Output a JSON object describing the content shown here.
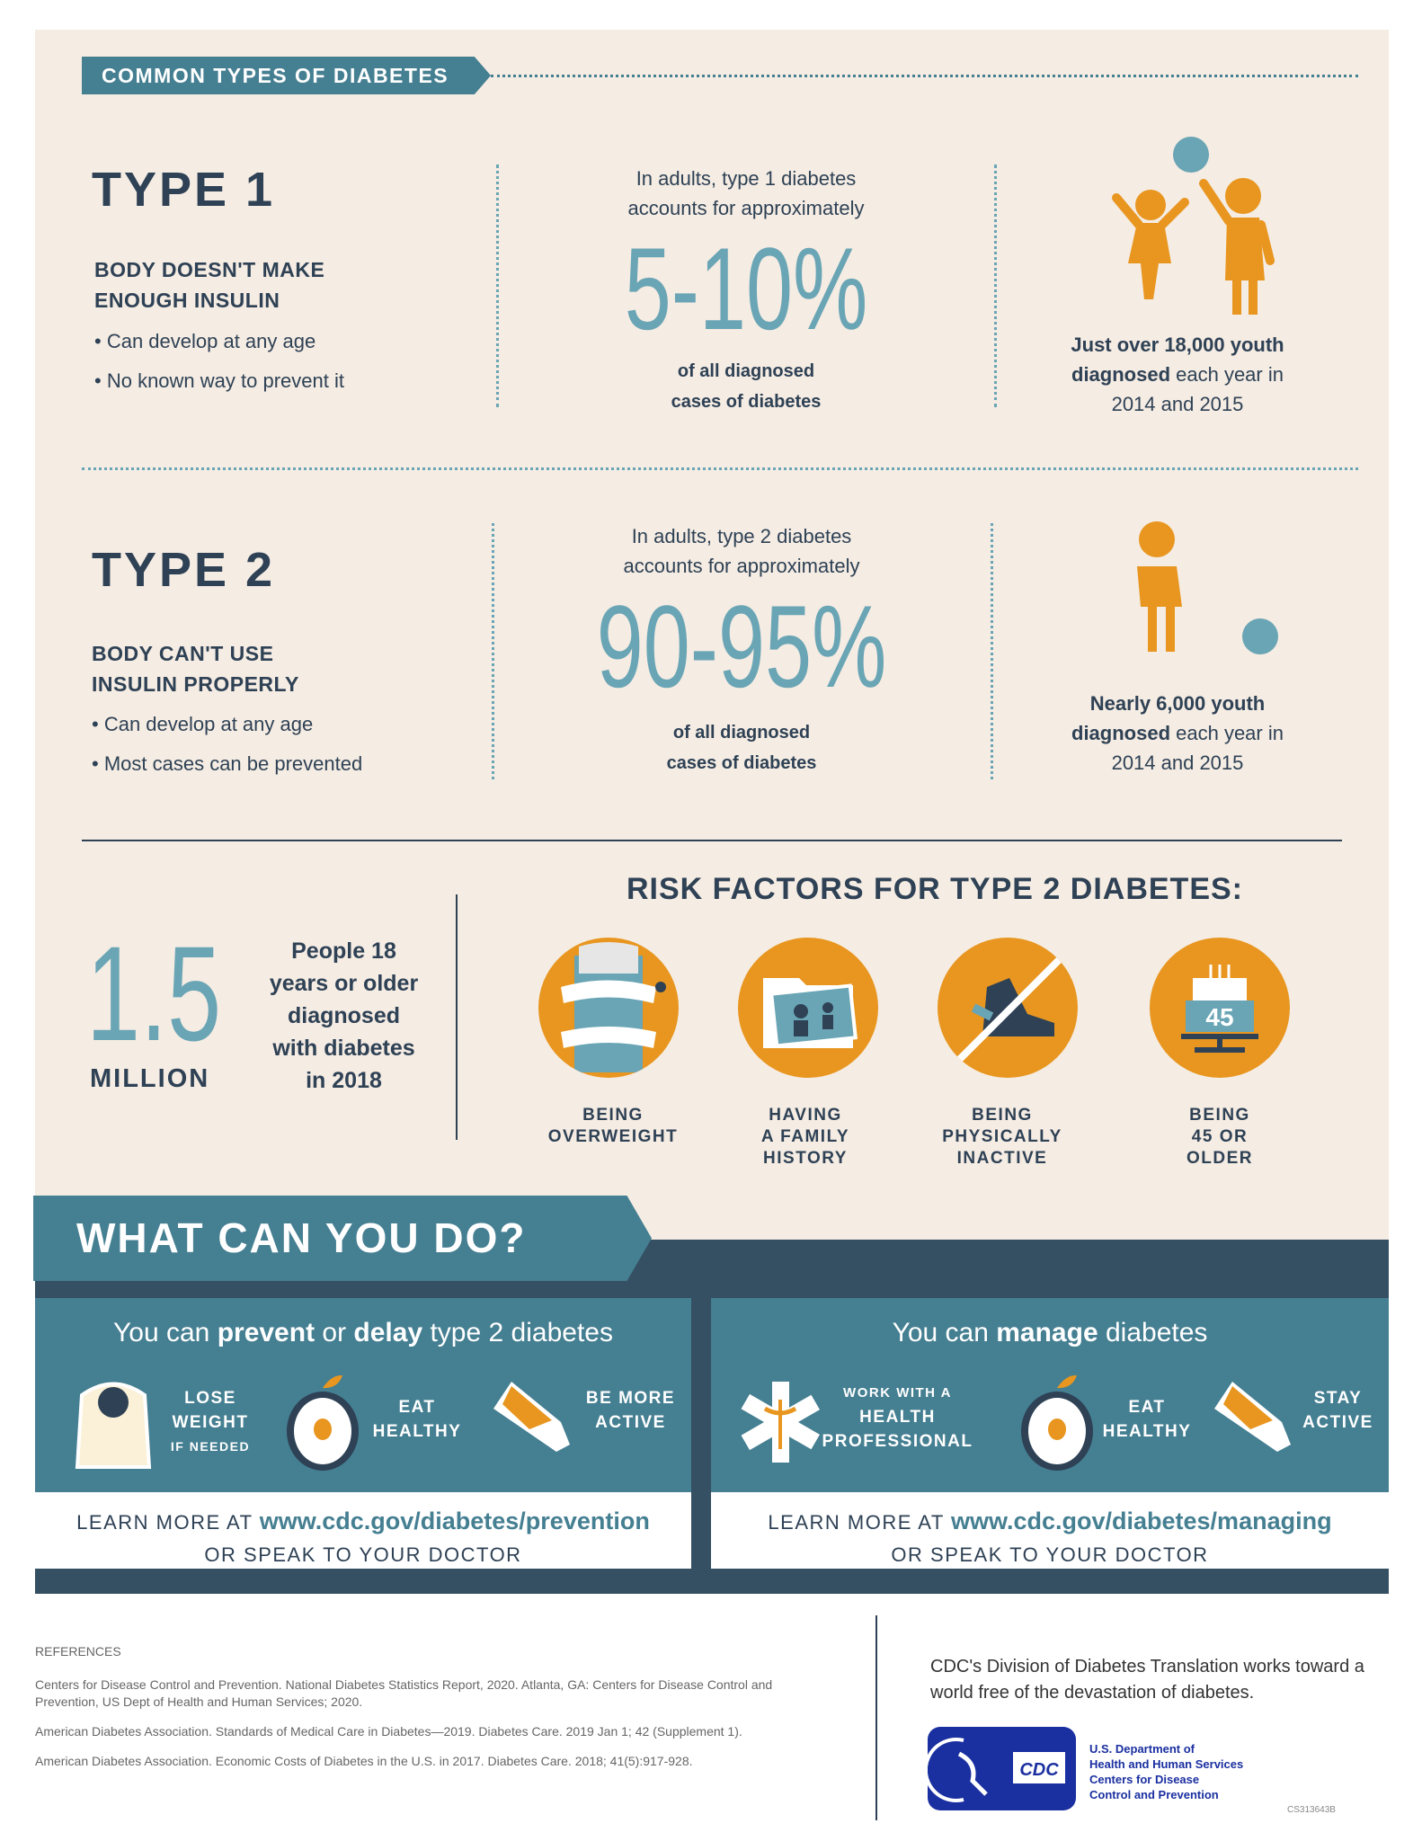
{
  "header": {
    "tag": "COMMON TYPES OF DIABETES"
  },
  "type1": {
    "title": "TYPE 1",
    "subtitle_line1": "BODY DOESN'T MAKE",
    "subtitle_line2": "ENOUGH INSULIN",
    "bullets": [
      "Can develop at any age",
      "No known way to prevent it"
    ],
    "intro_line1": "In adults, type 1 diabetes",
    "intro_line2": "accounts for approximately",
    "percent": "5-10%",
    "of_line1": "of all diagnosed",
    "of_line2": "cases of diabetes",
    "youth_bold_1": "Just over 18,000 youth",
    "youth_bold_2": "diagnosed",
    "youth_rest": " each year in",
    "youth_line3": "2014 and 2015"
  },
  "type2": {
    "title": "TYPE 2",
    "subtitle_line1": "BODY CAN'T USE",
    "subtitle_line2": "INSULIN PROPERLY",
    "bullets": [
      "Can develop at any age",
      "Most cases can be prevented"
    ],
    "intro_line1": "In adults, type 2 diabetes",
    "intro_line2": "accounts for approximately",
    "percent": "90-95%",
    "of_line1": "of all diagnosed",
    "of_line2": "cases of diabetes",
    "youth_bold_1": "Nearly 6,000 youth",
    "youth_bold_2": "diagnosed",
    "youth_rest": " each year in",
    "youth_line3": "2014 and 2015"
  },
  "stat": {
    "number": "1.5",
    "unit": "MILLION",
    "desc": [
      "People 18",
      "years or older",
      "diagnosed",
      "with diabetes",
      "in 2018"
    ]
  },
  "risk": {
    "title": "RISK FACTORS FOR TYPE 2 DIABETES:",
    "items": [
      {
        "icon": "tape-measure-waist-icon",
        "label": [
          "BEING",
          "OVERWEIGHT"
        ]
      },
      {
        "icon": "family-photo-folder-icon",
        "label": [
          "HAVING",
          "A FAMILY",
          "HISTORY"
        ]
      },
      {
        "icon": "crossed-out-sneaker-icon",
        "label": [
          "BEING",
          "PHYSICALLY",
          "INACTIVE"
        ]
      },
      {
        "icon": "birthday-cake-icon",
        "cake_number": "45",
        "label": [
          "BEING",
          "45 OR",
          "OLDER"
        ]
      }
    ]
  },
  "actions": {
    "title": "WHAT CAN YOU DO?",
    "prevent": {
      "pre": "You can ",
      "b1": "prevent",
      "mid": " or ",
      "b2": "delay",
      "post": " type 2 diabetes",
      "items": [
        {
          "icon": "scale-icon",
          "l1": "LOSE",
          "l2": "WEIGHT",
          "l3": "IF NEEDED"
        },
        {
          "icon": "apple-icon",
          "l1": "EAT",
          "l2": "HEALTHY"
        },
        {
          "icon": "sneaker-icon",
          "l1": "BE MORE",
          "l2": "ACTIVE"
        }
      ],
      "learn": "LEARN MORE AT ",
      "url": "www.cdc.gov/diabetes/prevention",
      "speak": "OR SPEAK TO YOUR DOCTOR"
    },
    "manage": {
      "pre": "You can ",
      "b1": "manage",
      "post": " diabetes",
      "items": [
        {
          "icon": "medical-star-icon",
          "l1": "WORK WITH A",
          "l2": "HEALTH",
          "l3": "PROFESSIONAL"
        },
        {
          "icon": "apple-icon",
          "l1": "EAT",
          "l2": "HEALTHY"
        },
        {
          "icon": "sneaker-icon",
          "l1": "STAY",
          "l2": "ACTIVE"
        }
      ],
      "learn": "LEARN MORE AT ",
      "url": "www.cdc.gov/diabetes/managing",
      "speak": "OR SPEAK TO YOUR DOCTOR"
    }
  },
  "references": {
    "title": "REFERENCES",
    "items": [
      "Centers for Disease Control and Prevention. National Diabetes Statistics Report, 2020. Atlanta, GA: Centers for Disease Control and Prevention, US Dept of Health and Human Services; 2020.",
      "American Diabetes Association. Standards of Medical Care in Diabetes—2019. Diabetes Care. 2019 Jan 1; 42 (Supplement 1).",
      "American Diabetes Association. Economic Costs of Diabetes in the U.S. in 2017. Diabetes Care. 2018; 41(5):917-928."
    ]
  },
  "footer": {
    "mission": "CDC's Division of Diabetes Translation works toward a world free of the devastation of diabetes.",
    "logo_text": "CDC",
    "hhs": [
      "U.S. Department of",
      "Health and Human Services",
      "Centers for Disease",
      "Control and Prevention"
    ],
    "code": "CS313643B"
  },
  "colors": {
    "navy": "#2e4155",
    "teal": "#457f92",
    "light_teal": "#6aa5b5",
    "orange": "#e8961f",
    "beige": "#f5ece3",
    "dark": "#354f63",
    "hhs_blue": "#1a2fa0"
  }
}
